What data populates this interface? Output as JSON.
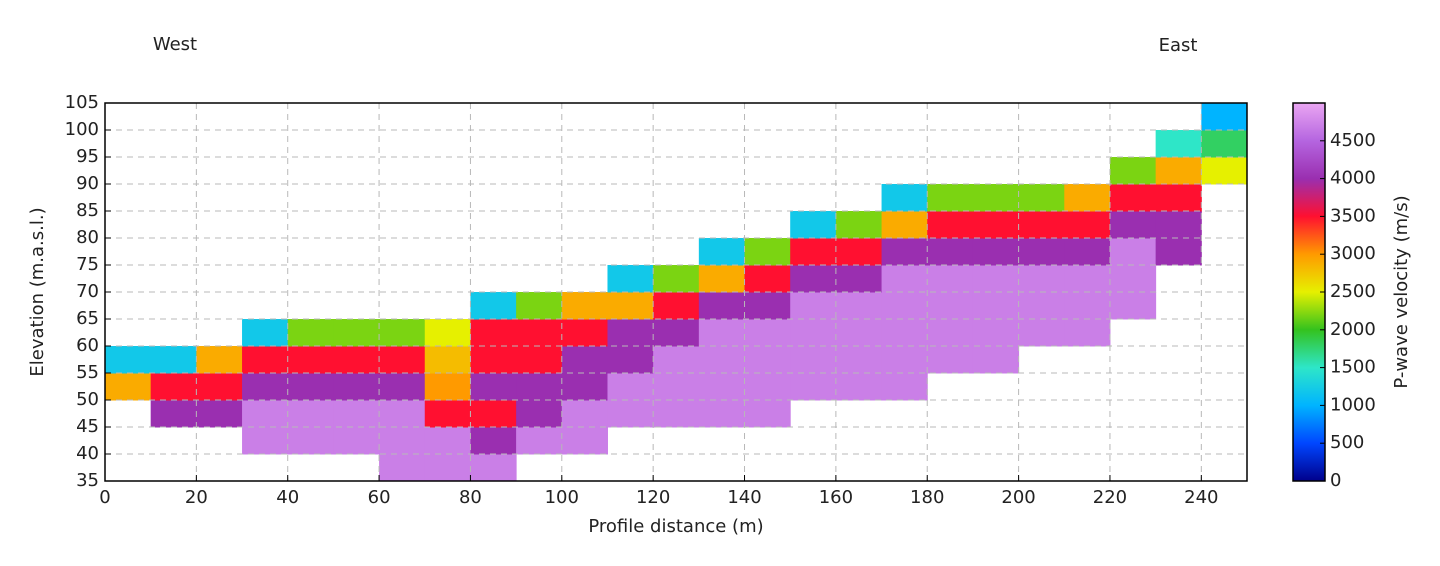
{
  "chart_data": {
    "type": "heatmap",
    "annotations": [
      "West",
      "East"
    ],
    "x_label": "Profile distance (m)",
    "y_label": "Elevation (m.a.s.l.)",
    "colorbar_label": "P-wave velocity (m/s)",
    "xlim": [
      0,
      250
    ],
    "ylim": [
      35,
      105
    ],
    "xticks": [
      0,
      20,
      40,
      60,
      80,
      100,
      120,
      140,
      160,
      180,
      200,
      220,
      240
    ],
    "yticks": [
      35,
      40,
      45,
      50,
      55,
      60,
      65,
      70,
      75,
      80,
      85,
      90,
      95,
      100,
      105
    ],
    "clim": [
      0,
      5000
    ],
    "cticks": [
      0,
      500,
      1000,
      1500,
      2000,
      2500,
      3000,
      3500,
      4000,
      4500
    ],
    "colorscale": [
      [
        0,
        "#00008b"
      ],
      [
        500,
        "#0046ff"
      ],
      [
        1000,
        "#00b4ff"
      ],
      [
        1500,
        "#2ee6c8"
      ],
      [
        2000,
        "#34c21e"
      ],
      [
        2500,
        "#e6f000"
      ],
      [
        3000,
        "#ff9a00"
      ],
      [
        3500,
        "#ff1030"
      ],
      [
        4000,
        "#9a2fb0"
      ],
      [
        4500,
        "#b565e0"
      ],
      [
        5000,
        "#eaa6f2"
      ]
    ],
    "grid": true,
    "x_bins": [
      0,
      10,
      20,
      30,
      40,
      50,
      60,
      70,
      80,
      90,
      100,
      110,
      120,
      130,
      140,
      150,
      160,
      170,
      180,
      190,
      200,
      210,
      220,
      230,
      240,
      250
    ],
    "y_bins": [
      35,
      40,
      45,
      50,
      55,
      60,
      65,
      70,
      75,
      80,
      85,
      90,
      95,
      100,
      105
    ],
    "z": [
      [
        null,
        null,
        null,
        null,
        null,
        null,
        4700,
        4700,
        4700,
        null,
        null,
        null,
        null,
        null,
        null,
        null,
        null,
        null,
        null,
        null,
        null,
        null,
        null,
        null,
        null
      ],
      [
        null,
        null,
        null,
        4700,
        4700,
        4700,
        4700,
        4700,
        4000,
        4700,
        4700,
        null,
        null,
        null,
        null,
        null,
        null,
        null,
        null,
        null,
        null,
        null,
        null,
        null,
        null
      ],
      [
        null,
        4000,
        4000,
        4700,
        4700,
        4700,
        4700,
        3500,
        3500,
        4000,
        4700,
        4700,
        4700,
        4700,
        4700,
        null,
        null,
        null,
        null,
        null,
        null,
        null,
        null,
        null,
        null
      ],
      [
        2900,
        3500,
        3500,
        4000,
        4000,
        4000,
        4000,
        3000,
        4000,
        4000,
        4000,
        4700,
        4700,
        4700,
        4700,
        4700,
        4700,
        4700,
        null,
        null,
        null,
        null,
        null,
        null,
        null
      ],
      [
        1200,
        1200,
        2900,
        3500,
        3500,
        3500,
        3500,
        2800,
        3500,
        3500,
        4000,
        4000,
        4700,
        4700,
        4700,
        4700,
        4700,
        4700,
        4700,
        4700,
        null,
        null,
        null,
        null,
        null
      ],
      [
        null,
        null,
        null,
        1200,
        2200,
        2200,
        2200,
        2500,
        3500,
        3500,
        3500,
        4000,
        4000,
        4700,
        4700,
        4700,
        4700,
        4700,
        4700,
        4700,
        4700,
        4700,
        null,
        null,
        null
      ],
      [
        null,
        null,
        null,
        null,
        null,
        null,
        null,
        null,
        1200,
        2200,
        2900,
        2900,
        3500,
        4000,
        4000,
        4700,
        4700,
        4700,
        4700,
        4700,
        4700,
        4700,
        4700,
        null,
        null
      ],
      [
        null,
        null,
        null,
        null,
        null,
        null,
        null,
        null,
        null,
        null,
        null,
        1200,
        2200,
        2900,
        3500,
        4000,
        4000,
        4700,
        4700,
        4700,
        4700,
        4700,
        4700,
        null,
        null
      ],
      [
        null,
        null,
        null,
        null,
        null,
        null,
        null,
        null,
        null,
        null,
        null,
        null,
        null,
        1200,
        2200,
        3500,
        3500,
        4000,
        4000,
        4000,
        4000,
        4000,
        4700,
        4000,
        null
      ],
      [
        null,
        null,
        null,
        null,
        null,
        null,
        null,
        null,
        null,
        null,
        null,
        null,
        null,
        null,
        null,
        1200,
        2200,
        2900,
        3500,
        3500,
        3500,
        3500,
        4000,
        4000,
        null
      ],
      [
        null,
        null,
        null,
        null,
        null,
        null,
        null,
        null,
        null,
        null,
        null,
        null,
        null,
        null,
        null,
        null,
        null,
        1200,
        2200,
        2200,
        2200,
        2900,
        3500,
        3500,
        null
      ],
      [
        null,
        null,
        null,
        null,
        null,
        null,
        null,
        null,
        null,
        null,
        null,
        null,
        null,
        null,
        null,
        null,
        null,
        null,
        null,
        null,
        null,
        null,
        2200,
        2900,
        2500
      ],
      [
        null,
        null,
        null,
        null,
        null,
        null,
        null,
        null,
        null,
        null,
        null,
        null,
        null,
        null,
        null,
        null,
        null,
        null,
        null,
        null,
        null,
        null,
        null,
        1500,
        1800
      ],
      [
        null,
        null,
        null,
        null,
        null,
        null,
        null,
        null,
        null,
        null,
        null,
        null,
        null,
        null,
        null,
        null,
        null,
        null,
        null,
        null,
        null,
        null,
        null,
        null,
        1000
      ]
    ]
  }
}
